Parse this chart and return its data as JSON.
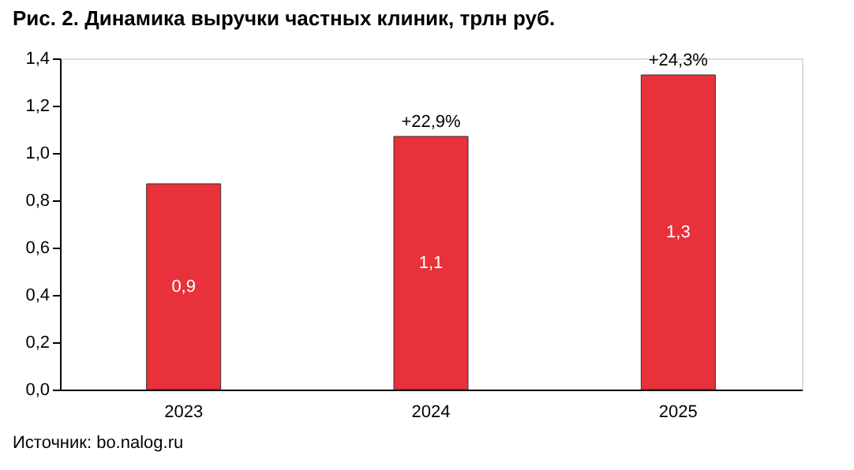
{
  "chart_data": {
    "type": "bar",
    "title": "Рис. 2. Динамика выручки частных клиник, трлн руб.",
    "categories": [
      "2023",
      "2024",
      "2025"
    ],
    "values": [
      0.87,
      1.07,
      1.33
    ],
    "value_labels": [
      "0,9",
      "1,1",
      "1,3"
    ],
    "color": "#e8313a",
    "ylim": [
      0,
      1.4
    ],
    "yticks": [
      {
        "value": 0,
        "label": "0,0"
      },
      {
        "value": 0.2,
        "label": "0,2"
      },
      {
        "value": 0.4,
        "label": "0,4"
      },
      {
        "value": 0.6,
        "label": "0,6"
      },
      {
        "value": 0.8,
        "label": "0,8"
      },
      {
        "value": 1.0,
        "label": "1,0"
      },
      {
        "value": 1.2,
        "label": "1,2"
      },
      {
        "value": 1.4,
        "label": "1,4"
      }
    ],
    "grid": false,
    "annotations": [
      {
        "text": "+22,9%",
        "x": "2024",
        "y": 1.07
      },
      {
        "text": "+24,3%",
        "x": "2025",
        "y": 1.33
      },
      "Источник: bo.nalog.ru"
    ]
  }
}
